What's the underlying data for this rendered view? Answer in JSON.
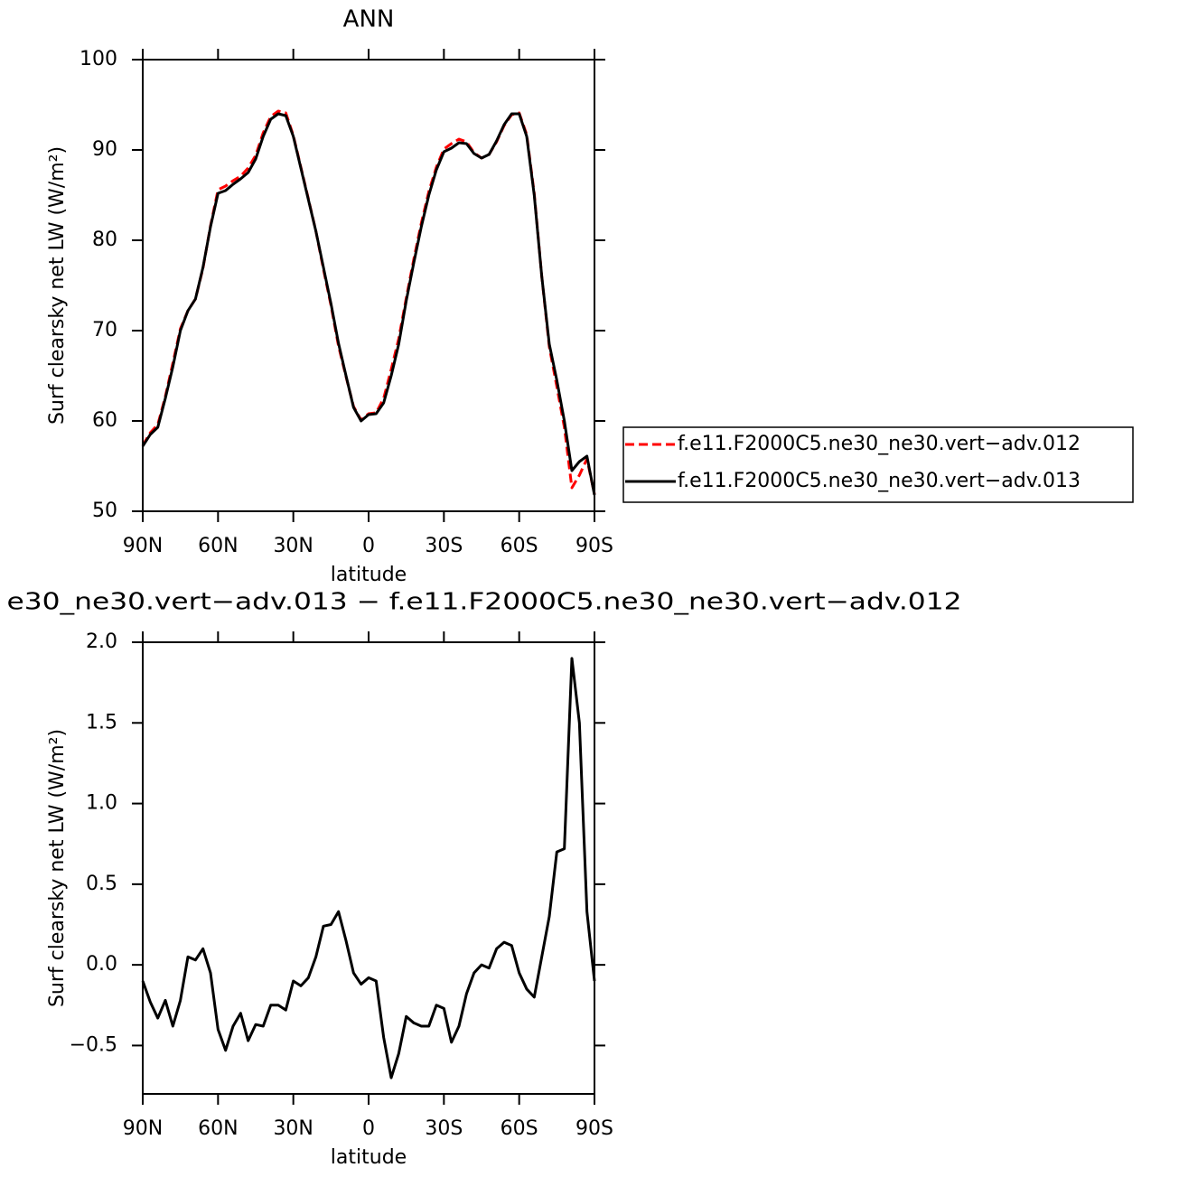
{
  "chart_data": [
    {
      "type": "line",
      "title": "ANN",
      "xlabel": "latitude",
      "ylabel": "Surf clearsky net LW (W/m²)",
      "x": [
        90,
        87,
        84,
        81,
        78,
        75,
        72,
        69,
        66,
        63,
        60,
        57,
        54,
        51,
        48,
        45,
        42,
        39,
        36,
        33,
        30,
        27,
        24,
        21,
        18,
        15,
        12,
        9,
        6,
        3,
        0,
        -3,
        -6,
        -9,
        -12,
        -15,
        -18,
        -21,
        -24,
        -27,
        -30,
        -33,
        -36,
        -39,
        -42,
        -45,
        -48,
        -51,
        -54,
        -57,
        -60,
        -63,
        -66,
        -69,
        -72,
        -75,
        -78,
        -81,
        -84,
        -87,
        -90
      ],
      "series": [
        {
          "name": "f.e11.F2000C5.ne30_ne30.vert−adv.012",
          "color": "#ff0000",
          "dashed": true,
          "values": [
            57.3,
            58.7,
            59.6,
            62.7,
            66.4,
            70.2,
            72.2,
            73.5,
            76.9,
            81.6,
            85.6,
            86.0,
            86.6,
            87.1,
            88.0,
            89.4,
            91.9,
            93.7,
            94.3,
            94.1,
            91.6,
            88.1,
            84.6,
            81.0,
            76.8,
            72.8,
            68.3,
            64.9,
            61.6,
            60.1,
            60.8,
            60.9,
            62.5,
            65.7,
            69.1,
            73.6,
            77.9,
            81.9,
            85.4,
            88.1,
            90.1,
            90.7,
            91.2,
            90.9,
            89.7,
            89.1,
            89.5,
            90.9,
            92.7,
            93.9,
            94.1,
            91.7,
            85.2,
            76.0,
            68.2,
            63.8,
            59.3,
            52.6,
            54.0,
            55.8,
            51.9
          ]
        },
        {
          "name": "f.e11.F2000C5.ne30_ne30.vert−adv.013",
          "color": "#000000",
          "dashed": false,
          "values": [
            57.2,
            58.5,
            59.3,
            62.5,
            66.0,
            70.0,
            72.2,
            73.5,
            77.0,
            81.5,
            85.2,
            85.5,
            86.2,
            86.8,
            87.5,
            89.0,
            91.5,
            93.4,
            94.0,
            93.8,
            91.5,
            88.0,
            84.5,
            81.0,
            77.0,
            73.0,
            68.6,
            65.0,
            61.5,
            60.0,
            60.7,
            60.8,
            62.0,
            65.0,
            68.5,
            73.3,
            77.5,
            81.5,
            85.0,
            87.8,
            89.8,
            90.2,
            90.8,
            90.7,
            89.6,
            89.1,
            89.5,
            91.0,
            92.8,
            94.0,
            94.0,
            91.5,
            85.0,
            76.0,
            68.5,
            64.5,
            60.0,
            54.5,
            55.5,
            56.1,
            51.8
          ]
        }
      ],
      "xlim": [
        90,
        -90
      ],
      "xticks": [
        {
          "value": 90,
          "label": "90N"
        },
        {
          "value": 60,
          "label": "60N"
        },
        {
          "value": 30,
          "label": "30N"
        },
        0,
        {
          "value": -30,
          "label": "30S"
        },
        {
          "value": -60,
          "label": "60S"
        },
        {
          "value": -90,
          "label": "90S"
        }
      ],
      "ylim": [
        50,
        100
      ],
      "yticks": [
        50,
        60,
        70,
        80,
        90,
        100
      ],
      "legend": "right"
    },
    {
      "type": "line",
      "title": "e30_ne30.vert−adv.013 − f.e11.F2000C5.ne30_ne30.vert−adv.012",
      "xlabel": "latitude",
      "ylabel": "Surf clearsky net LW (W/m²)",
      "x": [
        90,
        87,
        84,
        81,
        78,
        75,
        72,
        69,
        66,
        63,
        60,
        57,
        54,
        51,
        48,
        45,
        42,
        39,
        36,
        33,
        30,
        27,
        24,
        21,
        18,
        15,
        12,
        9,
        6,
        3,
        0,
        -3,
        -6,
        -9,
        -12,
        -15,
        -18,
        -21,
        -24,
        -27,
        -30,
        -33,
        -36,
        -39,
        -42,
        -45,
        -48,
        -51,
        -54,
        -57,
        -60,
        -63,
        -66,
        -69,
        -72,
        -75,
        -78,
        -81,
        -84,
        -87,
        -90
      ],
      "series": [
        {
          "color": "#000000",
          "dashed": false,
          "values": [
            -0.1,
            -0.23,
            -0.33,
            -0.22,
            -0.38,
            -0.22,
            0.05,
            0.03,
            0.1,
            -0.05,
            -0.4,
            -0.53,
            -0.38,
            -0.3,
            -0.47,
            -0.37,
            -0.38,
            -0.25,
            -0.25,
            -0.28,
            -0.1,
            -0.13,
            -0.08,
            0.05,
            0.24,
            0.25,
            0.33,
            0.15,
            -0.05,
            -0.12,
            -0.08,
            -0.1,
            -0.45,
            -0.7,
            -0.55,
            -0.32,
            -0.36,
            -0.38,
            -0.38,
            -0.25,
            -0.27,
            -0.48,
            -0.38,
            -0.18,
            -0.05,
            0.0,
            -0.02,
            0.1,
            0.14,
            0.12,
            -0.05,
            -0.15,
            -0.2,
            0.05,
            0.3,
            0.7,
            0.72,
            1.9,
            1.5,
            0.33,
            -0.1
          ]
        }
      ],
      "xlim": [
        90,
        -90
      ],
      "xticks": [
        {
          "value": 90,
          "label": "90N"
        },
        {
          "value": 60,
          "label": "60N"
        },
        {
          "value": 30,
          "label": "30N"
        },
        0,
        {
          "value": -30,
          "label": "30S"
        },
        {
          "value": -60,
          "label": "60S"
        },
        {
          "value": -90,
          "label": "90S"
        }
      ],
      "ylim": [
        -0.8,
        2.0
      ],
      "yticks": [
        {
          "value": -0.5,
          "label": "−0.5"
        },
        {
          "value": 0,
          "label": "0.0"
        },
        0.5,
        {
          "value": 1,
          "label": "1.0"
        },
        1.5,
        {
          "value": 2,
          "label": "2.0"
        }
      ]
    }
  ]
}
